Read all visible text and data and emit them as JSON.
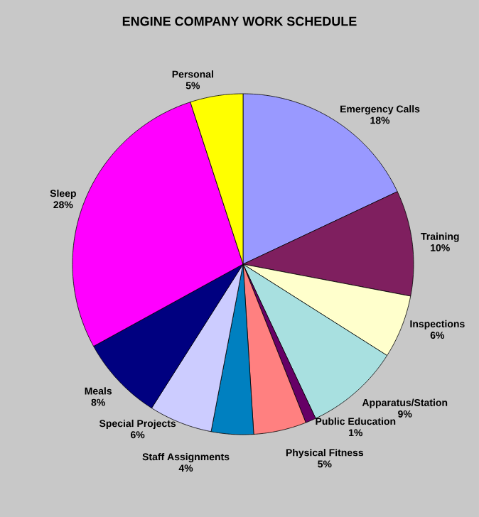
{
  "chart_data": {
    "type": "pie",
    "title": "ENGINE COMPANY WORK SCHEDULE",
    "categories": [
      "Emergency Calls",
      "Training",
      "Inspections",
      "Apparatus/Station",
      "Public Education",
      "Physical Fitness",
      "Staff Assignments",
      "Special Projects",
      "Meals",
      "Sleep",
      "Personal"
    ],
    "values": [
      18,
      10,
      6,
      9,
      1,
      5,
      4,
      6,
      8,
      28,
      5
    ],
    "value_labels": [
      "18%",
      "10%",
      "6%",
      "9%",
      "1%",
      "5%",
      "4%",
      "6%",
      "8%",
      "28%",
      "5%"
    ],
    "colors": [
      "#9999ff",
      "#7f1f5f",
      "#ffffcc",
      "#a8e0e0",
      "#660066",
      "#ff8080",
      "#0080c0",
      "#ccccff",
      "#000080",
      "#ff00ff",
      "#ffff00"
    ]
  }
}
